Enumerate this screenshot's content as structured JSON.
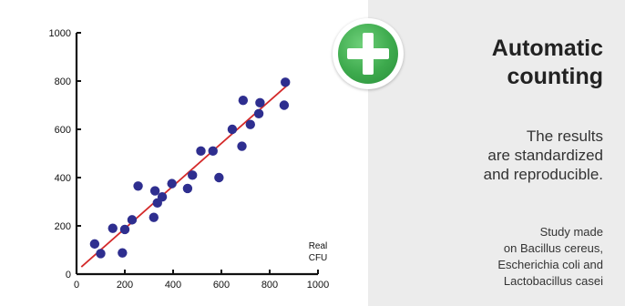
{
  "headline": [
    "Automatic",
    "counting"
  ],
  "results": [
    "The results",
    "are standardized",
    "and reproducible."
  ],
  "study": [
    "Study made",
    "on Bacillus cereus,",
    "Escherichia coli and",
    "Lactobacillus casei"
  ],
  "colors": {
    "points": "#2e2e8f",
    "fit_line": "#d42a2a",
    "plus_badge": "#3daa4d",
    "right_panel": "#ececec"
  },
  "icon": "plus-icon",
  "chart_data": {
    "type": "scatter",
    "xlabel": [
      "Real",
      "CFU"
    ],
    "ylabel": "",
    "xlim": [
      0,
      1000
    ],
    "ylim": [
      0,
      1000
    ],
    "x_ticks": [
      0,
      200,
      400,
      600,
      800,
      1000
    ],
    "y_ticks": [
      0,
      200,
      400,
      600,
      800,
      1000
    ],
    "grid": false,
    "points": [
      {
        "x": 75,
        "y": 125
      },
      {
        "x": 100,
        "y": 85
      },
      {
        "x": 150,
        "y": 190
      },
      {
        "x": 190,
        "y": 88
      },
      {
        "x": 200,
        "y": 185
      },
      {
        "x": 230,
        "y": 225
      },
      {
        "x": 255,
        "y": 365
      },
      {
        "x": 320,
        "y": 235
      },
      {
        "x": 325,
        "y": 345
      },
      {
        "x": 335,
        "y": 295
      },
      {
        "x": 355,
        "y": 320
      },
      {
        "x": 395,
        "y": 375
      },
      {
        "x": 460,
        "y": 355
      },
      {
        "x": 480,
        "y": 410
      },
      {
        "x": 515,
        "y": 510
      },
      {
        "x": 565,
        "y": 510
      },
      {
        "x": 590,
        "y": 400
      },
      {
        "x": 645,
        "y": 600
      },
      {
        "x": 685,
        "y": 530
      },
      {
        "x": 690,
        "y": 720
      },
      {
        "x": 720,
        "y": 620
      },
      {
        "x": 755,
        "y": 665
      },
      {
        "x": 760,
        "y": 710
      },
      {
        "x": 860,
        "y": 700
      },
      {
        "x": 865,
        "y": 795
      }
    ],
    "fit_line": {
      "x": [
        20,
        870
      ],
      "y": [
        30,
        780
      ]
    }
  }
}
